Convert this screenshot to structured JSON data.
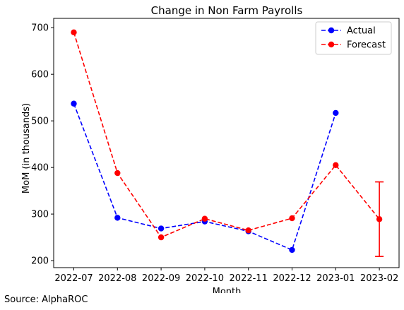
{
  "source_note": "Source: AlphaROC",
  "chart_data": {
    "type": "line",
    "title": "Change in Non Farm Payrolls",
    "xlabel": "Month",
    "ylabel": "MoM (in thousands)",
    "categories": [
      "2022-07",
      "2022-08",
      "2022-09",
      "2022-10",
      "2022-11",
      "2022-12",
      "2023-01",
      "2023-02"
    ],
    "ylim": [
      185,
      720
    ],
    "yticks": [
      200,
      300,
      400,
      500,
      600,
      700
    ],
    "grid": false,
    "legend_position": "top-right",
    "series": [
      {
        "name": "Actual",
        "color": "#0000ff",
        "values": [
          537,
          292,
          269,
          284,
          263,
          223,
          517,
          null
        ]
      },
      {
        "name": "Forecast",
        "color": "#ff0000",
        "values": [
          690,
          388,
          250,
          290,
          265,
          291,
          405,
          289
        ]
      }
    ],
    "error_bar": {
      "category": "2023-02",
      "low": 209,
      "high": 369,
      "color": "#ff0000"
    }
  }
}
